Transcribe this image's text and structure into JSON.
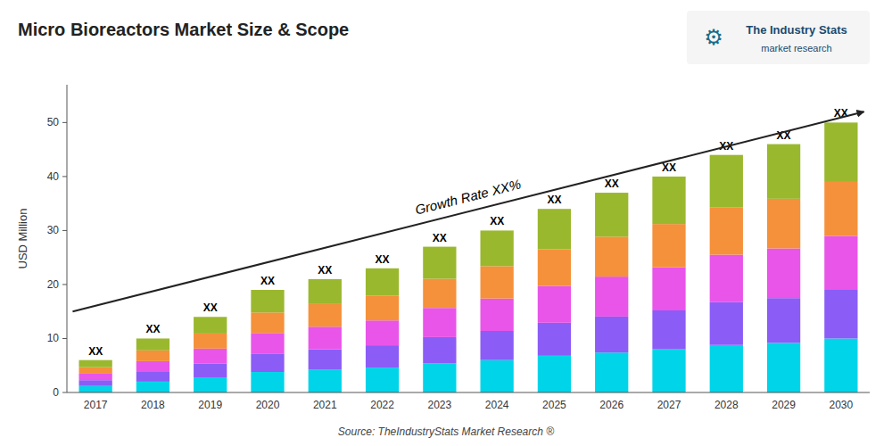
{
  "chart_data": {
    "type": "bar",
    "stacked": true,
    "grid": false,
    "title": "Micro Bioreactors Market Size & Scope",
    "ylabel": "USD Million",
    "source": "Source: TheIndustryStats Market Research ®",
    "logo": {
      "icon": "⚙",
      "name": "The Industry Stats",
      "tagline": "market research"
    },
    "categories": [
      "2017",
      "2018",
      "2019",
      "2020",
      "2021",
      "2022",
      "2023",
      "2024",
      "2025",
      "2026",
      "2027",
      "2028",
      "2029",
      "2030"
    ],
    "series": [
      {
        "color": "#00d4e8",
        "values": [
          1.2,
          2,
          2.8,
          3.8,
          4.2,
          4.6,
          5.4,
          6,
          6.8,
          7.4,
          8,
          8.8,
          9.2,
          10
        ]
      },
      {
        "color": "#8b5cf6",
        "values": [
          1.08,
          1.8,
          2.52,
          3.42,
          3.78,
          4.14,
          4.86,
          5.4,
          6.12,
          6.66,
          7.2,
          7.92,
          8.28,
          9
        ]
      },
      {
        "color": "#e855e8",
        "values": [
          1.2,
          2,
          2.8,
          3.8,
          4.2,
          4.6,
          5.4,
          6,
          6.8,
          7.4,
          8,
          8.8,
          9.2,
          10
        ]
      },
      {
        "color": "#f5913a",
        "values": [
          1.2,
          2,
          2.8,
          3.8,
          4.2,
          4.6,
          5.4,
          6,
          6.8,
          7.4,
          8,
          8.8,
          9.2,
          10
        ]
      },
      {
        "color": "#9ab82e",
        "values": [
          1.32,
          2.2,
          3.08,
          4.18,
          4.62,
          5.06,
          5.94,
          6.6,
          7.48,
          8.14,
          8.8,
          9.68,
          10.12,
          11
        ]
      }
    ],
    "annotations": [
      {
        "text": "XX",
        "category": "2017"
      },
      {
        "text": "XX",
        "category": "2018"
      },
      {
        "text": "XX",
        "category": "2019"
      },
      {
        "text": "XX",
        "category": "2020"
      },
      {
        "text": "XX",
        "category": "2021"
      },
      {
        "text": "XX",
        "category": "2022"
      },
      {
        "text": "XX",
        "category": "2023"
      },
      {
        "text": "XX",
        "category": "2024"
      },
      {
        "text": "XX",
        "category": "2025"
      },
      {
        "text": "XX",
        "category": "2026"
      },
      {
        "text": "XX",
        "category": "2027"
      },
      {
        "text": "XX",
        "category": "2028"
      },
      {
        "text": "XX",
        "category": "2029"
      },
      {
        "text": "XX",
        "category": "2030"
      }
    ],
    "arrow": {
      "y_start": 15,
      "y_end": 52
    },
    "growth_label": {
      "text": "Growth Rate XX%",
      "y": 36
    },
    "ylim": [
      0,
      57
    ],
    "yticks": [
      0,
      10,
      20,
      30,
      40,
      50
    ]
  }
}
